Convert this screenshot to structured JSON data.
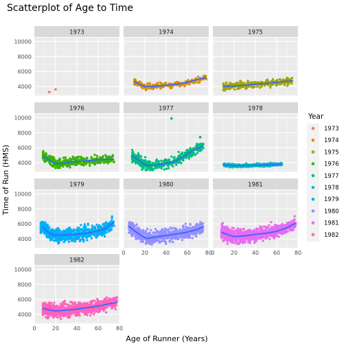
{
  "chart_data": {
    "type": "scatter",
    "title": "Scatterplot of Age to Time",
    "xlabel": "Age of Runner (Years)",
    "ylabel": "Time of Run (HMS)",
    "xlim": [
      0,
      80
    ],
    "ylim": [
      2800,
      10500
    ],
    "x_ticks": [
      0,
      20,
      40,
      60,
      80
    ],
    "y_ticks": [
      4000,
      6000,
      8000,
      10000
    ],
    "grid": true,
    "legend": {
      "title": "Year",
      "position": "right"
    },
    "facets": [
      {
        "year": "1973",
        "color": "#F8766D",
        "points": [
          [
            14,
            3250
          ],
          [
            20,
            3600
          ]
        ],
        "trend": []
      },
      {
        "year": "1974",
        "color": "#D89000",
        "points": [],
        "trend": [
          [
            10,
            4700
          ],
          [
            15,
            4250
          ],
          [
            20,
            3980
          ],
          [
            25,
            3960
          ],
          [
            30,
            4020
          ],
          [
            40,
            4150
          ],
          [
            50,
            4300
          ],
          [
            60,
            4550
          ],
          [
            70,
            4950
          ],
          [
            78,
            5200
          ]
        ],
        "cloud": {
          "x": [
            10,
            78
          ],
          "ymin": 3400,
          "ymax": 5400,
          "n": 220
        }
      },
      {
        "year": "1975",
        "color": "#A3A500",
        "points": [],
        "trend": [
          [
            10,
            4000
          ],
          [
            20,
            4050
          ],
          [
            30,
            4150
          ],
          [
            40,
            4300
          ],
          [
            50,
            4400
          ],
          [
            60,
            4550
          ],
          [
            70,
            4700
          ],
          [
            75,
            4750
          ]
        ],
        "cloud": {
          "x": [
            10,
            75
          ],
          "ymin": 3200,
          "ymax": 5600,
          "n": 260
        }
      },
      {
        "year": "1976",
        "color": "#39B600",
        "points": [],
        "trend": [
          [
            8,
            4850
          ],
          [
            12,
            4550
          ],
          [
            16,
            4150
          ],
          [
            20,
            3900
          ],
          [
            25,
            3850
          ],
          [
            30,
            4000
          ],
          [
            40,
            4150
          ],
          [
            50,
            4250
          ],
          [
            60,
            4400
          ],
          [
            75,
            4450
          ]
        ],
        "cloud": {
          "x": [
            8,
            75
          ],
          "ymin": 3100,
          "ymax": 6000,
          "n": 380
        }
      },
      {
        "year": "1977",
        "color": "#00BF7D",
        "points": [
          [
            45,
            9900
          ],
          [
            72,
            7400
          ]
        ],
        "trend": [
          [
            8,
            4900
          ],
          [
            15,
            4250
          ],
          [
            20,
            3700
          ],
          [
            25,
            3600
          ],
          [
            30,
            3650
          ],
          [
            40,
            3850
          ],
          [
            50,
            4300
          ],
          [
            60,
            5200
          ],
          [
            75,
            6300
          ]
        ],
        "cloud": {
          "x": [
            8,
            75
          ],
          "ymin": 3000,
          "ymax": 6500,
          "n": 420
        }
      },
      {
        "year": "1978",
        "color": "#00BFC4",
        "points": [],
        "trend": [
          [
            10,
            3700
          ],
          [
            20,
            3600
          ],
          [
            30,
            3600
          ],
          [
            40,
            3650
          ],
          [
            50,
            3700
          ],
          [
            60,
            3750
          ],
          [
            65,
            3800
          ]
        ],
        "cloud": {
          "x": [
            10,
            65
          ],
          "ymin": 3200,
          "ymax": 4200,
          "n": 360
        }
      },
      {
        "year": "1979",
        "color": "#00B0F6",
        "points": [],
        "trend": [
          [
            8,
            5600
          ],
          [
            12,
            5000
          ],
          [
            18,
            4500
          ],
          [
            25,
            4500
          ],
          [
            35,
            4550
          ],
          [
            45,
            4700
          ],
          [
            55,
            4900
          ],
          [
            65,
            5250
          ],
          [
            75,
            6200
          ]
        ],
        "cloud": {
          "x": [
            6,
            75
          ],
          "ymin": 3000,
          "ymax": 7200,
          "n": 700
        }
      },
      {
        "year": "1980",
        "color": "#9590FF",
        "points": [],
        "trend": [
          [
            5,
            5700
          ],
          [
            10,
            5100
          ],
          [
            18,
            4300
          ],
          [
            22,
            4050
          ],
          [
            30,
            4250
          ],
          [
            40,
            4450
          ],
          [
            50,
            4650
          ],
          [
            60,
            4900
          ],
          [
            70,
            5300
          ],
          [
            75,
            5600
          ]
        ],
        "cloud": {
          "x": [
            5,
            75
          ],
          "ymin": 3000,
          "ymax": 7200,
          "n": 700
        }
      },
      {
        "year": "1981",
        "color": "#E76BF3",
        "points": [],
        "trend": [
          [
            8,
            4900
          ],
          [
            15,
            4500
          ],
          [
            20,
            4300
          ],
          [
            30,
            4400
          ],
          [
            40,
            4600
          ],
          [
            50,
            4750
          ],
          [
            60,
            5000
          ],
          [
            70,
            5500
          ],
          [
            78,
            6100
          ]
        ],
        "cloud": {
          "x": [
            8,
            78
          ],
          "ymin": 3000,
          "ymax": 7400,
          "n": 800
        }
      },
      {
        "year": "1982",
        "color": "#FF62BC",
        "points": [],
        "trend": [
          [
            8,
            4800
          ],
          [
            15,
            4550
          ],
          [
            20,
            4450
          ],
          [
            30,
            4550
          ],
          [
            40,
            4700
          ],
          [
            50,
            4900
          ],
          [
            60,
            5100
          ],
          [
            70,
            5400
          ],
          [
            78,
            5600
          ]
        ],
        "cloud": {
          "x": [
            8,
            78
          ],
          "ymin": 3000,
          "ymax": 7400,
          "n": 800
        }
      }
    ]
  }
}
